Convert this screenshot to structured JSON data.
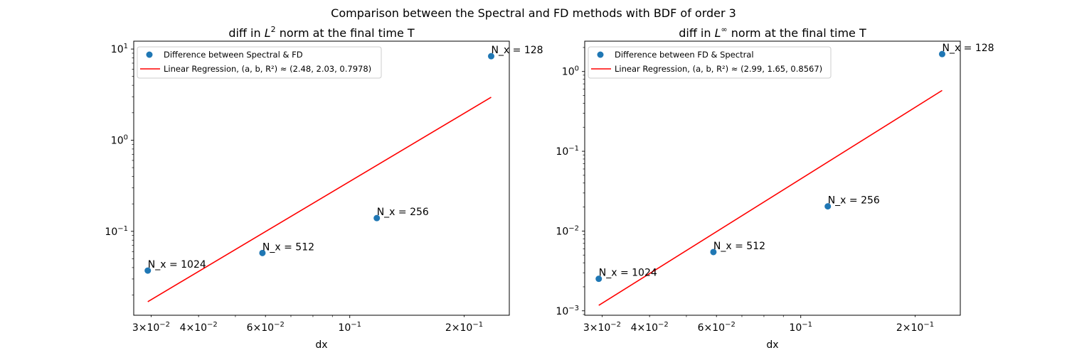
{
  "figure": {
    "suptitle": "Comparison between the Spectral and FD methods with BDF of order 3"
  },
  "chart_data": [
    {
      "type": "scatter",
      "title_prefix": "diff in ",
      "title_norm": "L",
      "title_sup": "2",
      "title_suffix": " norm at the final time T",
      "xlabel": "dx",
      "ylabel": "",
      "xscale": "log",
      "yscale": "log",
      "xlim": [
        0.027,
        0.263
      ],
      "ylim": [
        0.012,
        12.2
      ],
      "xticks": [
        {
          "value": 0.03,
          "base": "3×10",
          "exp": "−2"
        },
        {
          "value": 0.04,
          "base": "4×10",
          "exp": "−2"
        },
        {
          "value": 0.06,
          "base": "6×10",
          "exp": "−2"
        },
        {
          "value": 0.1,
          "base": "10",
          "exp": "−1"
        },
        {
          "value": 0.2,
          "base": "2×10",
          "exp": "−1"
        }
      ],
      "yticks": [
        {
          "value": 0.1,
          "base": "10",
          "exp": "−1"
        },
        {
          "value": 1,
          "base": "10",
          "exp": "0"
        },
        {
          "value": 10,
          "base": "10",
          "exp": "1"
        }
      ],
      "grid": false,
      "legend_position": "upper left",
      "series": [
        {
          "name": "Difference between Spectral & FD",
          "kind": "scatter",
          "color": "#1f77b4",
          "x": [
            0.0294,
            0.0589,
            0.1178,
            0.2356
          ],
          "y": [
            0.0371,
            0.0578,
            0.1397,
            8.35
          ],
          "labels": [
            "N_x = 1024",
            "N_x = 512",
            "N_x = 256",
            "N_x = 128"
          ]
        },
        {
          "name": "Linear Regression, (a, b, R²) ≈ (2.48, 2.03, 0.7978)",
          "kind": "line",
          "color": "#ff0000",
          "x": [
            0.0294,
            0.2356
          ],
          "y": [
            0.0169,
            2.96
          ]
        }
      ]
    },
    {
      "type": "scatter",
      "title_prefix": "diff in ",
      "title_norm": "L",
      "title_sup": "∞",
      "title_suffix": " norm at the final time T",
      "xlabel": "dx",
      "ylabel": "",
      "xscale": "log",
      "yscale": "log",
      "xlim": [
        0.027,
        0.263
      ],
      "ylim": [
        0.00088,
        2.4
      ],
      "xticks": [
        {
          "value": 0.03,
          "base": "3×10",
          "exp": "−2"
        },
        {
          "value": 0.04,
          "base": "4×10",
          "exp": "−2"
        },
        {
          "value": 0.06,
          "base": "6×10",
          "exp": "−2"
        },
        {
          "value": 0.1,
          "base": "10",
          "exp": "−1"
        },
        {
          "value": 0.2,
          "base": "2×10",
          "exp": "−1"
        }
      ],
      "yticks": [
        {
          "value": 0.001,
          "base": "10",
          "exp": "−3"
        },
        {
          "value": 0.01,
          "base": "10",
          "exp": "−2"
        },
        {
          "value": 0.1,
          "base": "10",
          "exp": "−1"
        },
        {
          "value": 1,
          "base": "10",
          "exp": "0"
        }
      ],
      "grid": false,
      "legend_position": "upper left",
      "series": [
        {
          "name": "Difference between FD & Spectral",
          "kind": "scatter",
          "color": "#1f77b4",
          "x": [
            0.0294,
            0.0589,
            0.1178,
            0.2356
          ],
          "y": [
            0.00252,
            0.00546,
            0.0204,
            1.655
          ],
          "labels": [
            "N_x = 1024",
            "N_x = 512",
            "N_x = 256",
            "N_x = 128"
          ]
        },
        {
          "name": "Linear Regression, (a, b, R²) ≈ (2.99, 1.65, 0.8567)",
          "kind": "line",
          "color": "#ff0000",
          "x": [
            0.0294,
            0.2356
          ],
          "y": [
            0.00117,
            0.579
          ]
        }
      ]
    }
  ]
}
